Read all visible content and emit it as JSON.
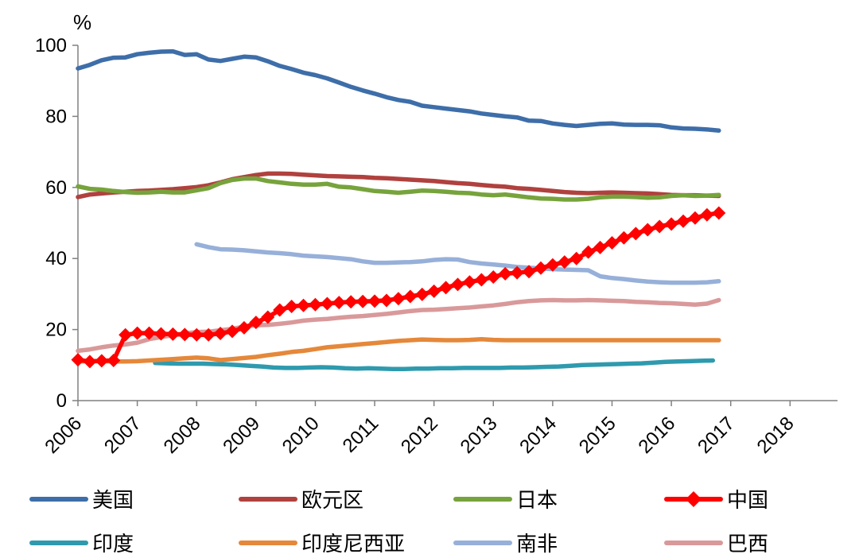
{
  "chart_data": {
    "type": "line",
    "title": "",
    "unit_label": "%",
    "xlabel": "",
    "ylabel": "",
    "x_start": 2006,
    "x_end": 2018.8,
    "step": 0.2,
    "x_tick_labels": [
      "2006",
      "2007",
      "2008",
      "2009",
      "2010",
      "2011",
      "2012",
      "2013",
      "2014",
      "2015",
      "2016",
      "2017",
      "2018"
    ],
    "y_ticks": [
      0,
      20,
      40,
      60,
      80,
      100
    ],
    "ylim": [
      0,
      100
    ],
    "grid": false,
    "legend_position": "bottom",
    "series": [
      {
        "name": "美国",
        "key": "us",
        "color": "#3E6EA9",
        "start": 2006,
        "values": [
          93.5,
          94.5,
          95.8,
          96.5,
          96.6,
          97.5,
          97.9,
          98.2,
          98.3,
          97.3,
          97.5,
          96.0,
          95.6,
          96.2,
          96.8,
          96.6,
          95.5,
          94.2,
          93.3,
          92.3,
          91.6,
          90.7,
          89.5,
          88.3,
          87.3,
          86.4,
          85.4,
          84.6,
          84.1,
          83.0,
          82.6,
          82.2,
          81.8,
          81.4,
          80.8,
          80.4,
          80.0,
          79.7,
          78.8,
          78.7,
          78.0,
          77.6,
          77.3,
          77.6,
          77.9,
          78.0,
          77.7,
          77.6,
          77.6,
          77.5,
          76.9,
          76.6,
          76.5,
          76.3,
          76.0
        ]
      },
      {
        "name": "欧元区",
        "key": "euro",
        "color": "#B0413E",
        "start": 2006,
        "values": [
          57.3,
          58.0,
          58.3,
          58.6,
          58.8,
          59.0,
          59.1,
          59.3,
          59.5,
          59.8,
          60.1,
          60.6,
          61.4,
          62.3,
          62.9,
          63.5,
          63.9,
          63.9,
          63.8,
          63.6,
          63.4,
          63.2,
          63.1,
          63.0,
          62.9,
          62.7,
          62.6,
          62.4,
          62.2,
          62.0,
          61.8,
          61.5,
          61.2,
          61.0,
          60.7,
          60.4,
          60.2,
          59.8,
          59.6,
          59.3,
          59.0,
          58.7,
          58.5,
          58.4,
          58.5,
          58.6,
          58.5,
          58.4,
          58.3,
          58.1,
          57.9,
          57.8,
          57.8,
          57.7,
          57.6
        ]
      },
      {
        "name": "日本",
        "key": "japan",
        "color": "#77A33C",
        "start": 2006,
        "values": [
          60.3,
          59.6,
          59.4,
          59.0,
          58.7,
          58.5,
          58.6,
          58.8,
          58.6,
          58.6,
          59.2,
          59.8,
          61.2,
          62.1,
          62.5,
          62.5,
          61.8,
          61.4,
          61.0,
          60.8,
          60.8,
          61.0,
          60.2,
          60.0,
          59.5,
          59.0,
          58.8,
          58.5,
          58.8,
          59.1,
          59.0,
          58.8,
          58.5,
          58.4,
          58.0,
          57.8,
          58.0,
          57.6,
          57.2,
          56.9,
          56.8,
          56.6,
          56.6,
          56.8,
          57.2,
          57.4,
          57.4,
          57.3,
          57.1,
          57.2,
          57.6,
          57.8,
          57.6,
          57.7,
          57.9
        ]
      },
      {
        "name": "中国",
        "key": "china",
        "color": "#FF0000",
        "start": 2006,
        "values": [
          11.5,
          11.0,
          11.2,
          11.3,
          18.5,
          19.0,
          19.0,
          18.8,
          18.7,
          18.6,
          18.5,
          18.5,
          18.9,
          19.5,
          20.5,
          22.0,
          23.5,
          25.5,
          26.5,
          26.8,
          27.0,
          27.3,
          27.6,
          27.8,
          27.9,
          28.0,
          28.2,
          28.7,
          29.3,
          29.9,
          30.8,
          31.8,
          32.7,
          33.4,
          34.0,
          34.8,
          35.7,
          36.0,
          36.3,
          37.3,
          38.2,
          39.0,
          40.0,
          41.8,
          43.1,
          44.4,
          45.8,
          47.0,
          48.1,
          49.0,
          49.7,
          50.5,
          51.4,
          52.3,
          52.8
        ]
      },
      {
        "name": "印度",
        "key": "india",
        "color": "#2F9AAE",
        "start": 2007.3,
        "values": [
          10.6,
          10.5,
          10.4,
          10.4,
          10.4,
          10.3,
          10.2,
          10.0,
          9.8,
          9.6,
          9.3,
          9.2,
          9.2,
          9.3,
          9.4,
          9.3,
          9.1,
          9.0,
          9.1,
          9.0,
          8.9,
          8.9,
          9.0,
          9.0,
          9.1,
          9.1,
          9.2,
          9.2,
          9.2,
          9.2,
          9.3,
          9.3,
          9.4,
          9.5,
          9.6,
          9.8,
          10.0,
          10.1,
          10.2,
          10.3,
          10.4,
          10.5,
          10.7,
          10.9,
          11.0,
          11.1,
          11.2,
          11.3
        ]
      },
      {
        "name": "印度尼西亚",
        "key": "indonesia",
        "color": "#E5883A",
        "start": 2006,
        "values": [
          11.0,
          11.1,
          11.1,
          11.0,
          11.0,
          11.1,
          11.3,
          11.5,
          11.7,
          11.9,
          12.1,
          11.9,
          11.4,
          11.7,
          12.0,
          12.3,
          12.8,
          13.2,
          13.7,
          14.0,
          14.5,
          15.0,
          15.3,
          15.6,
          15.9,
          16.2,
          16.5,
          16.8,
          17.0,
          17.2,
          17.1,
          17.0,
          17.0,
          17.1,
          17.3,
          17.1,
          17.0,
          17.0,
          17.0,
          17.0,
          17.0,
          17.0,
          17.0,
          17.0,
          17.0,
          17.0,
          17.0,
          17.0,
          17.0,
          17.0,
          17.0,
          17.0,
          17.0,
          17.0,
          17.0
        ]
      },
      {
        "name": "南非",
        "key": "sa",
        "color": "#97B0D9",
        "start": 2008,
        "values": [
          44.0,
          43.2,
          42.6,
          42.5,
          42.3,
          42.0,
          41.7,
          41.5,
          41.2,
          40.8,
          40.6,
          40.4,
          40.1,
          39.8,
          39.2,
          38.8,
          38.8,
          38.9,
          39.0,
          39.2,
          39.6,
          39.8,
          39.7,
          39.0,
          38.6,
          38.3,
          38.0,
          37.6,
          37.4,
          37.2,
          37.0,
          36.9,
          36.8,
          36.7,
          35.0,
          34.5,
          34.2,
          33.8,
          33.5,
          33.3,
          33.2,
          33.2,
          33.2,
          33.3,
          33.6
        ]
      },
      {
        "name": "巴西",
        "key": "brazil",
        "color": "#D9999A",
        "start": 2006,
        "values": [
          14.0,
          14.4,
          15.0,
          15.5,
          15.8,
          16.3,
          17.3,
          17.9,
          18.4,
          18.9,
          19.3,
          19.4,
          19.8,
          20.2,
          20.8,
          21.2,
          21.3,
          21.6,
          22.0,
          22.5,
          22.8,
          23.0,
          23.3,
          23.6,
          23.8,
          24.1,
          24.4,
          24.8,
          25.2,
          25.5,
          25.6,
          25.8,
          26.0,
          26.2,
          26.5,
          26.8,
          27.2,
          27.7,
          28.0,
          28.2,
          28.3,
          28.2,
          28.2,
          28.3,
          28.2,
          28.1,
          28.0,
          27.8,
          27.7,
          27.5,
          27.4,
          27.2,
          27.0,
          27.3,
          28.3
        ]
      }
    ]
  }
}
